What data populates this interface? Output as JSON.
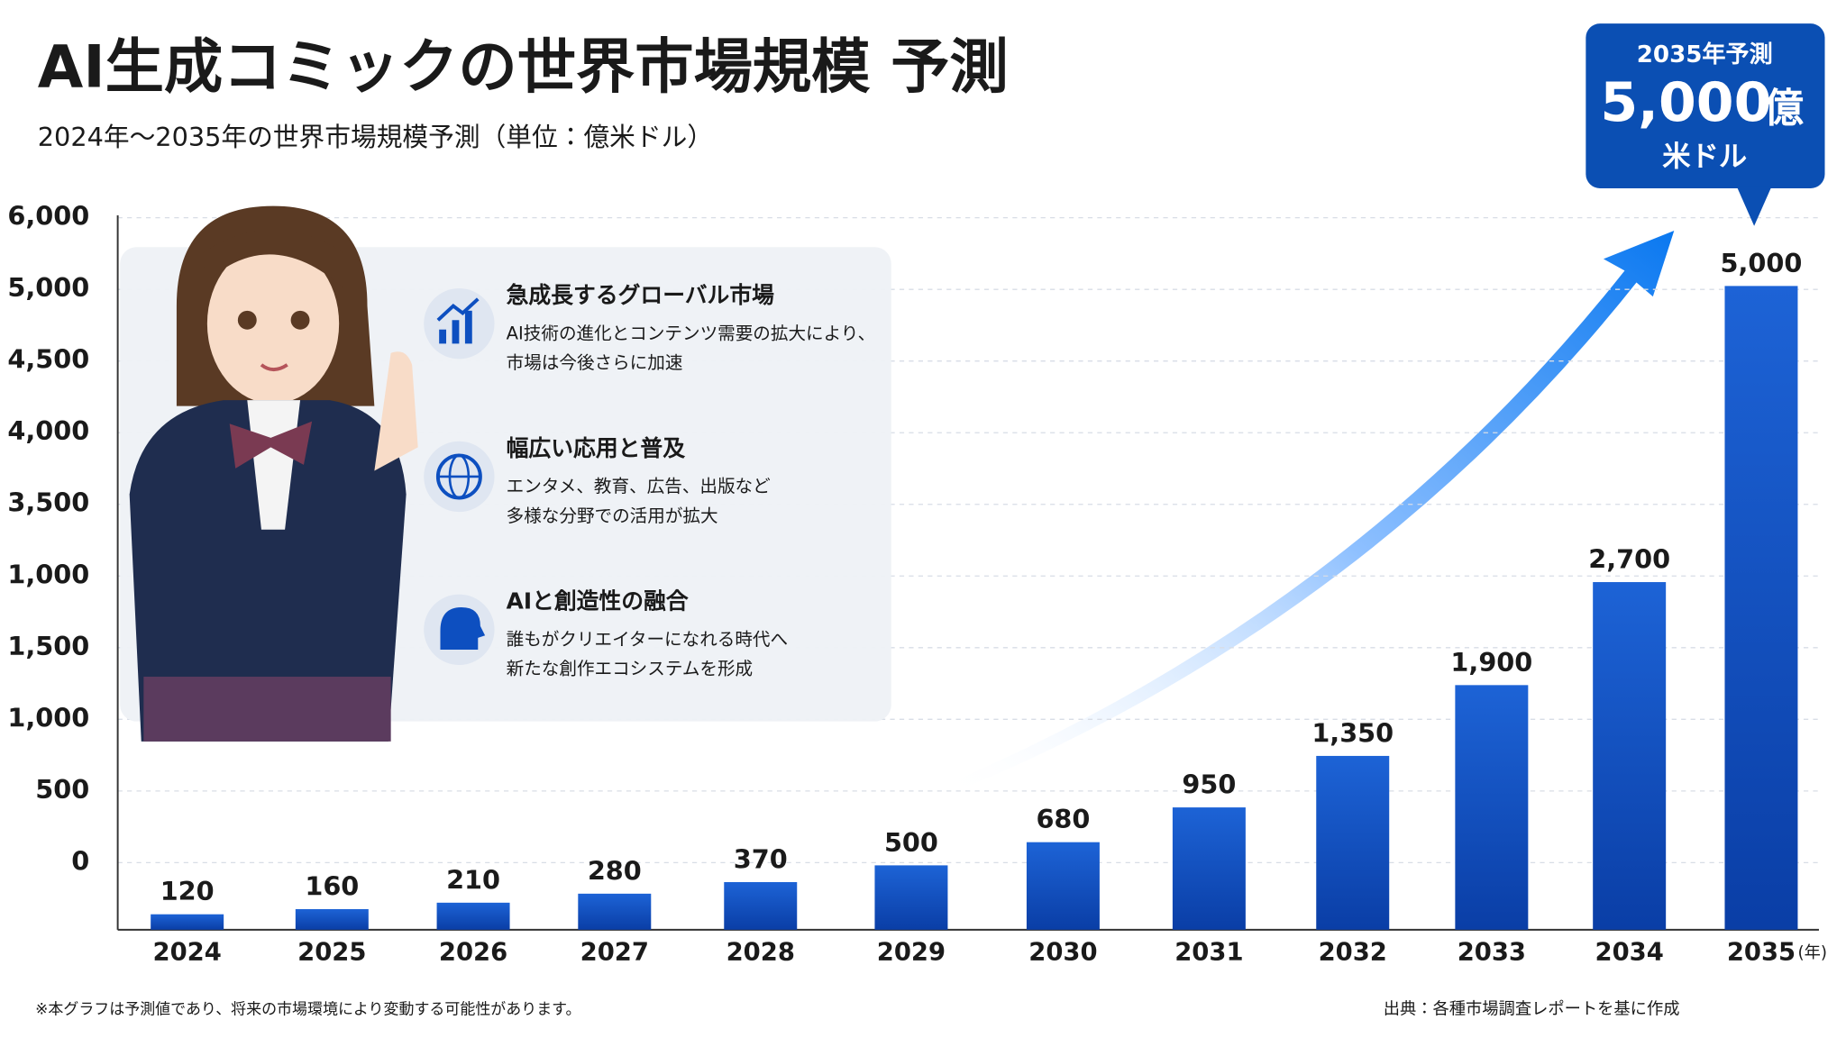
{
  "chart_data": {
    "type": "bar",
    "title": "AI生成コミックの世界市場規模 予測",
    "subtitle": "2024年～2035年の世界市場規模予測（単位：億米ドル）",
    "categories": [
      "2024",
      "2025",
      "2026",
      "2027",
      "2028",
      "2029",
      "2030",
      "2031",
      "2032",
      "2033",
      "2034",
      "2035"
    ],
    "values": [
      120,
      160,
      210,
      280,
      370,
      500,
      680,
      950,
      1350,
      1900,
      2700,
      5000
    ],
    "value_labels": [
      "120",
      "160",
      "210",
      "280",
      "370",
      "500",
      "680",
      "950",
      "1,350",
      "1,900",
      "2,700",
      "5,000"
    ],
    "color": "#0d4fc0",
    "y_axis_labels": [
      "6,000",
      "5,000",
      "4,500",
      "4,000",
      "3,500",
      "1,000",
      "1,500",
      "1,000",
      "500",
      "0"
    ],
    "x_unit": "(年)",
    "grid": true
  },
  "callout": {
    "label": "2035年予測",
    "value": "5,000",
    "unit": "億",
    "currency": "米ドル"
  },
  "features": [
    {
      "title": "急成長するグローバル市場",
      "lines": [
        "AI技術の進化とコンテンツ需要の拡大により、",
        "市場は今後さらに加速"
      ]
    },
    {
      "title": "幅広い応用と普及",
      "lines": [
        "エンタメ、教育、広告、出版など",
        "多様な分野での活用が拡大"
      ]
    },
    {
      "title": "AIと創造性の融合",
      "lines": [
        "誰もがクリエイターになれる時代へ",
        "新たな創作エコシステムを形成"
      ]
    }
  ],
  "footnote": "※本グラフは予測値であり、将来の市場環境により変動する可能性があります。",
  "source": "出典：各種市場調査レポートを基に作成"
}
